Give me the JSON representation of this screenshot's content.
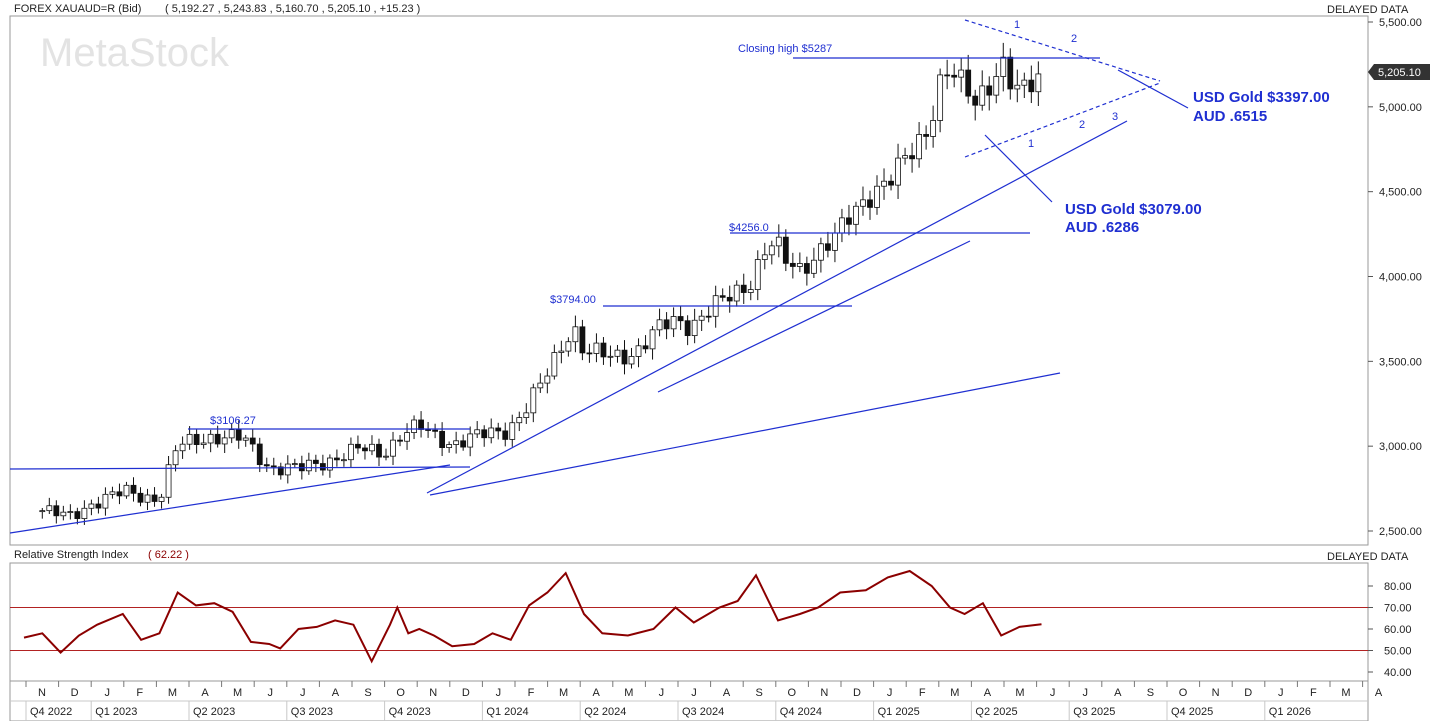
{
  "header": {
    "symbol_line": "FOREX XAUAUD=R (Bid)",
    "ohlc_line": "( 5,192.27 ,  5,243.83 ,  5,160.70 ,  5,205.10 ,  +15.23 )",
    "delayed": "DELAYED DATA",
    "watermark": "MetaStock"
  },
  "rsi_panel": {
    "title": "Relative Strength Index",
    "value": "( 62.22 )",
    "delayed": "DELAYED DATA"
  },
  "annotations": {
    "closing_high": "Closing high $5287",
    "level_4256": "$4256.0",
    "level_3794": "$3794.00",
    "level_3106": "$3106.27",
    "usd_gold_1": "USD Gold $3397.00",
    "aud_1": "AUD .6515",
    "usd_gold_2": "USD Gold $3079.00",
    "aud_2": "AUD .6286",
    "wave_top_1": "1",
    "wave_top_2": "2",
    "wave_bot_1": "1",
    "wave_bot_2": "2",
    "wave_bot_3": "3"
  },
  "colors": {
    "line_blue": "#1f2fd1",
    "rsi": "#8b0000",
    "rsi_levels": "#b22222",
    "text_dark": "#222222",
    "last_price_badge": "#333333"
  },
  "chart_data": [
    {
      "type": "candlestick",
      "title": "FOREX XAUAUD=R (Bid)",
      "frequency": "weekly",
      "price_axis": {
        "ticks": [
          "2,500.00",
          "3,000.00",
          "3,500.00",
          "4,000.00",
          "4,500.00",
          "5,000.00",
          "5,500.00"
        ],
        "ylim": [
          2400,
          5600
        ],
        "last_price": "5,205.10"
      },
      "time_axis": {
        "month_labels": [
          "N",
          "D",
          "J",
          "F",
          "M",
          "A",
          "M",
          "J",
          "J",
          "A",
          "S",
          "O",
          "N",
          "D",
          "J",
          "F",
          "M",
          "A",
          "M",
          "J",
          "J",
          "A",
          "S",
          "O",
          "N",
          "D",
          "J",
          "F",
          "M",
          "A",
          "M",
          "J",
          "J",
          "A",
          "S",
          "O",
          "N",
          "D",
          "J",
          "F",
          "M",
          "A"
        ],
        "quarter_labels": [
          "Q4 2022",
          "Q1 2023",
          "Q2 2023",
          "Q3 2023",
          "Q4 2023",
          "Q1 2024",
          "Q2 2024",
          "Q3 2024",
          "Q4 2024",
          "Q1 2025",
          "Q2 2025",
          "Q3 2025",
          "Q4 2025",
          "Q1 2026"
        ]
      },
      "close_path": [
        [
          2022.85,
          2620
        ],
        [
          2022.92,
          2580
        ],
        [
          2022.98,
          2660
        ],
        [
          2023.08,
          2730
        ],
        [
          2023.17,
          2690
        ],
        [
          2023.22,
          3000
        ],
        [
          2023.3,
          3060
        ],
        [
          2023.4,
          3040
        ],
        [
          2023.47,
          2880
        ],
        [
          2023.55,
          2860
        ],
        [
          2023.63,
          2920
        ],
        [
          2023.72,
          2980
        ],
        [
          2023.78,
          2960
        ],
        [
          2023.83,
          3070
        ],
        [
          2023.88,
          3110
        ],
        [
          2023.92,
          3060
        ],
        [
          2023.97,
          3020
        ],
        [
          2024.05,
          3060
        ],
        [
          2024.12,
          3100
        ],
        [
          2024.17,
          3220
        ],
        [
          2024.22,
          3380
        ],
        [
          2024.27,
          3600
        ],
        [
          2024.3,
          3720
        ],
        [
          2024.33,
          3560
        ],
        [
          2024.4,
          3520
        ],
        [
          2024.47,
          3560
        ],
        [
          2024.53,
          3680
        ],
        [
          2024.58,
          3740
        ],
        [
          2024.62,
          3720
        ],
        [
          2024.67,
          3800
        ],
        [
          2024.72,
          3860
        ],
        [
          2024.78,
          3960
        ],
        [
          2024.82,
          4150
        ],
        [
          2024.85,
          4200
        ],
        [
          2024.88,
          4080
        ],
        [
          2024.92,
          4040
        ],
        [
          2024.97,
          4160
        ],
        [
          2025.02,
          4230
        ],
        [
          2025.07,
          4380
        ],
        [
          2025.12,
          4520
        ],
        [
          2025.17,
          4580
        ],
        [
          2025.22,
          4700
        ],
        [
          2025.27,
          4880
        ],
        [
          2025.3,
          5150
        ],
        [
          2025.33,
          5230
        ],
        [
          2025.37,
          5080
        ],
        [
          2025.4,
          5020
        ],
        [
          2025.43,
          5120
        ],
        [
          2025.47,
          5287
        ],
        [
          2025.5,
          5120
        ],
        [
          2025.53,
          5060
        ],
        [
          2025.56,
          5140
        ],
        [
          2025.58,
          5205.1
        ]
      ],
      "horizontal_levels": [
        {
          "label": "Closing high $5287",
          "value": 5287
        },
        {
          "label": "$4256.0",
          "value": 4256
        },
        {
          "label": "$3794.00",
          "value": 3794
        },
        {
          "label": "$3106.27",
          "value": 3106.27
        }
      ]
    },
    {
      "type": "line",
      "title": "Relative Strength Index",
      "current": 62.22,
      "y_ticks": [
        "40.00",
        "50.00",
        "60.00",
        "70.00",
        "80.00"
      ],
      "ylim": [
        36,
        90
      ],
      "reference_lines": [
        50,
        70
      ],
      "x": [
        2022.8,
        2022.85,
        2022.9,
        2022.95,
        2023.0,
        2023.07,
        2023.12,
        2023.17,
        2023.22,
        2023.27,
        2023.32,
        2023.37,
        2023.42,
        2023.47,
        2023.5,
        2023.55,
        2023.6,
        2023.65,
        2023.7,
        2023.75,
        2023.8,
        2023.82,
        2023.85,
        2023.88,
        2023.92,
        2023.97,
        2024.03,
        2024.08,
        2024.13,
        2024.18,
        2024.23,
        2024.28,
        2024.33,
        2024.38,
        2024.45,
        2024.52,
        2024.58,
        2024.63,
        2024.7,
        2024.75,
        2024.8,
        2024.86,
        2024.92,
        2024.97,
        2025.03,
        2025.1,
        2025.16,
        2025.22,
        2025.28,
        2025.33,
        2025.37,
        2025.42,
        2025.47,
        2025.52,
        2025.58
      ],
      "y": [
        56,
        58,
        49,
        57,
        62,
        67,
        55,
        58,
        77,
        71,
        72,
        68,
        54,
        53,
        51,
        60,
        61,
        64,
        62,
        45,
        62,
        70,
        58,
        60,
        57,
        52,
        53,
        58,
        55,
        71,
        77,
        86,
        67,
        58,
        57,
        60,
        70,
        63,
        70,
        73,
        85,
        64,
        67,
        70,
        77,
        78,
        84,
        87,
        80,
        70,
        67,
        72,
        57,
        61,
        62.22
      ]
    }
  ]
}
